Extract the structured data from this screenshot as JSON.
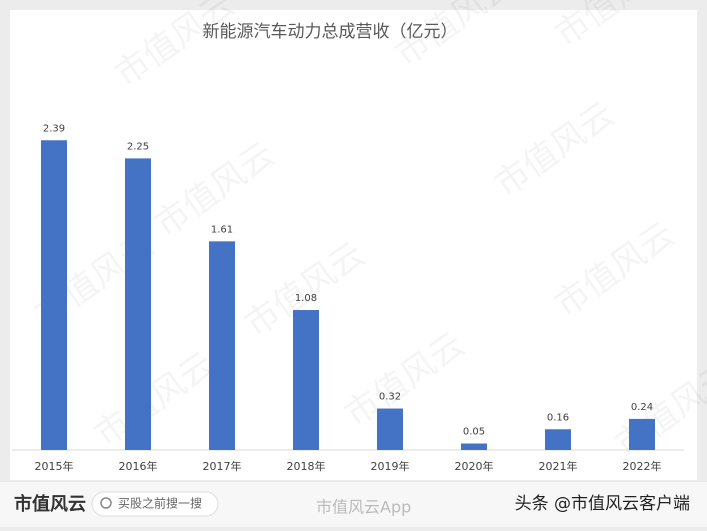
{
  "chart_data": {
    "type": "bar",
    "title": "新能源汽车动力总成营收（亿元）",
    "categories": [
      "2015年",
      "2016年",
      "2017年",
      "2018年",
      "2019年",
      "2020年",
      "2021年",
      "2022年"
    ],
    "values": [
      2.39,
      2.25,
      1.61,
      1.08,
      0.32,
      0.05,
      0.16,
      0.24
    ],
    "color": "#4472c4",
    "ylim": [
      0,
      2.5
    ],
    "grid": false
  },
  "watermark": "市值风云",
  "footer": {
    "logo": "市值风云",
    "search": "买股之前搜一搜",
    "app": "市值风云App",
    "credit": "头条 @市值风云客户端"
  }
}
